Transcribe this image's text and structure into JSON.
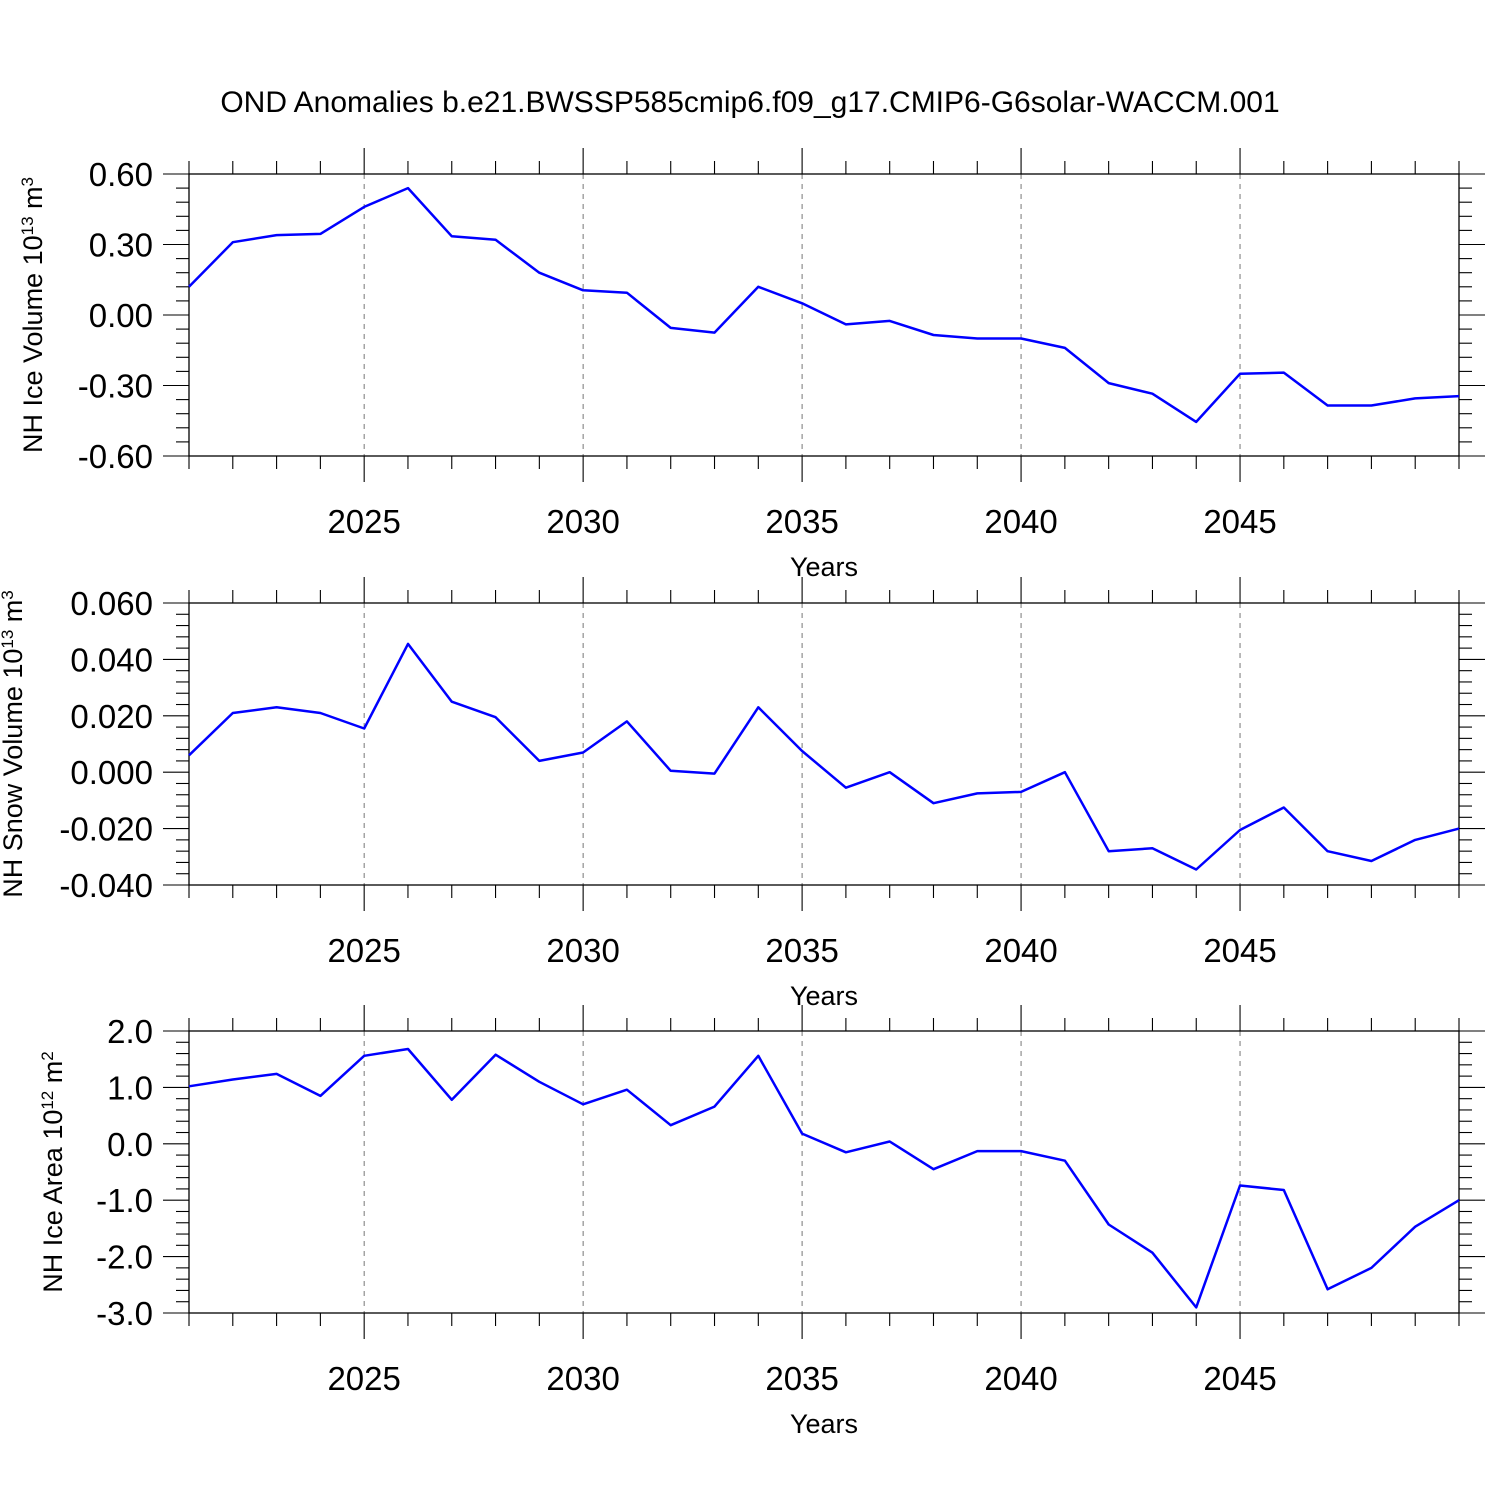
{
  "figure": {
    "title": "OND Anomalies b.e21.BWSSP585cmip6.f09_g17.CMIP6-G6solar-WACCM.001"
  },
  "chart_data": [
    {
      "type": "line",
      "title": "",
      "xlabel": "Years",
      "ylabel": {
        "text": "NH Ice Volume 10",
        "sup": "13",
        "unit": " m",
        "unit_sup": "3"
      },
      "xlim": [
        2021,
        2050
      ],
      "ylim": [
        -0.6,
        0.6
      ],
      "yticks": [
        0.6,
        0.3,
        0.0,
        -0.3,
        -0.6
      ],
      "ytick_labels": [
        "0.60",
        "0.30",
        "0.00",
        "-0.30",
        "-0.60"
      ],
      "xticks": [
        2025,
        2030,
        2035,
        2040,
        2045
      ],
      "xtick_labels": [
        "2025",
        "2030",
        "2035",
        "2040",
        "2045"
      ],
      "grid": "dashed vertical at major x ticks",
      "series": [
        {
          "color": "#0000ff",
          "x": [
            2021,
            2022,
            2023,
            2024,
            2025,
            2026,
            2027,
            2028,
            2029,
            2030,
            2031,
            2032,
            2033,
            2034,
            2035,
            2036,
            2037,
            2038,
            2039,
            2040,
            2041,
            2042,
            2043,
            2044,
            2045,
            2046,
            2047,
            2048,
            2049,
            2050
          ],
          "values": [
            0.12,
            0.31,
            0.34,
            0.345,
            0.46,
            0.54,
            0.335,
            0.32,
            0.18,
            0.105,
            0.095,
            -0.055,
            -0.075,
            0.12,
            0.05,
            -0.04,
            -0.025,
            -0.085,
            -0.1,
            -0.1,
            -0.14,
            -0.29,
            -0.335,
            -0.455,
            -0.25,
            -0.245,
            -0.385,
            -0.385,
            -0.355,
            -0.345
          ]
        }
      ]
    },
    {
      "type": "line",
      "title": "",
      "xlabel": "Years",
      "ylabel": {
        "text": "NH Snow Volume 10",
        "sup": "13",
        "unit": " m",
        "unit_sup": "3"
      },
      "xlim": [
        2021,
        2050
      ],
      "ylim": [
        -0.04,
        0.06
      ],
      "yticks": [
        0.06,
        0.04,
        0.02,
        0.0,
        -0.02,
        -0.04
      ],
      "ytick_labels": [
        "0.060",
        "0.040",
        "0.020",
        "0.000",
        "-0.020",
        "-0.040"
      ],
      "xticks": [
        2025,
        2030,
        2035,
        2040,
        2045
      ],
      "xtick_labels": [
        "2025",
        "2030",
        "2035",
        "2040",
        "2045"
      ],
      "grid": "dashed vertical at major x ticks",
      "series": [
        {
          "color": "#0000ff",
          "x": [
            2021,
            2022,
            2023,
            2024,
            2025,
            2026,
            2027,
            2028,
            2029,
            2030,
            2031,
            2032,
            2033,
            2034,
            2035,
            2036,
            2037,
            2038,
            2039,
            2040,
            2041,
            2042,
            2043,
            2044,
            2045,
            2046,
            2047,
            2048,
            2049,
            2050
          ],
          "values": [
            0.006,
            0.021,
            0.023,
            0.021,
            0.0155,
            0.0455,
            0.025,
            0.0195,
            0.004,
            0.007,
            0.018,
            0.0005,
            -0.0005,
            0.023,
            0.0075,
            -0.0055,
            0.0,
            -0.011,
            -0.0075,
            -0.007,
            0.0,
            -0.028,
            -0.027,
            -0.0345,
            -0.0205,
            -0.0125,
            -0.028,
            -0.0315,
            -0.024,
            -0.02
          ]
        }
      ]
    },
    {
      "type": "line",
      "title": "",
      "xlabel": "Years",
      "ylabel": {
        "text": "NH Ice Area 10",
        "sup": "12",
        "unit": " m",
        "unit_sup": "2"
      },
      "xlim": [
        2021,
        2050
      ],
      "ylim": [
        -3.0,
        2.0
      ],
      "yticks": [
        2.0,
        1.0,
        0.0,
        -1.0,
        -2.0,
        -3.0
      ],
      "ytick_labels": [
        "2.0",
        "1.0",
        "0.0",
        "-1.0",
        "-2.0",
        "-3.0"
      ],
      "xticks": [
        2025,
        2030,
        2035,
        2040,
        2045
      ],
      "xtick_labels": [
        "2025",
        "2030",
        "2035",
        "2040",
        "2045"
      ],
      "grid": "dashed vertical at major x ticks",
      "series": [
        {
          "color": "#0000ff",
          "x": [
            2021,
            2022,
            2023,
            2024,
            2025,
            2026,
            2027,
            2028,
            2029,
            2030,
            2031,
            2032,
            2033,
            2034,
            2035,
            2036,
            2037,
            2038,
            2039,
            2040,
            2041,
            2042,
            2043,
            2044,
            2045,
            2046,
            2047,
            2048,
            2049,
            2050
          ],
          "values": [
            1.02,
            1.14,
            1.24,
            0.85,
            1.56,
            1.68,
            0.78,
            1.58,
            1.1,
            0.7,
            0.96,
            0.33,
            0.66,
            1.56,
            0.18,
            -0.15,
            0.04,
            -0.45,
            -0.13,
            -0.13,
            -0.3,
            -1.43,
            -1.93,
            -2.9,
            -0.74,
            -0.82,
            -2.58,
            -2.2,
            -1.47,
            -1.0
          ]
        }
      ]
    }
  ]
}
